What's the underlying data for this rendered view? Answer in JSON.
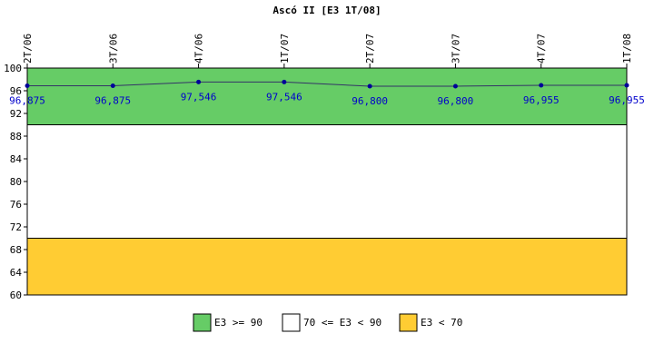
{
  "chart_data": {
    "type": "line",
    "title": "Ascó II [E3 1T/08]",
    "categories": [
      "2T/06",
      "3T/06",
      "4T/06",
      "1T/07",
      "2T/07",
      "3T/07",
      "4T/07",
      "1T/08"
    ],
    "series": [
      {
        "values": [
          96.875,
          96.875,
          97.546,
          97.546,
          96.8,
          96.8,
          96.955,
          96.955
        ],
        "labels": [
          "96,875",
          "96,875",
          "97,546",
          "97,546",
          "96,800",
          "96,800",
          "96,955",
          "96,955"
        ],
        "color": "#333366",
        "marker_color": "#000099",
        "label_color": "#0000cc"
      }
    ],
    "ylim": [
      60,
      100
    ],
    "yticks": [
      60,
      64,
      68,
      72,
      76,
      80,
      84,
      88,
      92,
      96,
      100
    ],
    "bands": [
      {
        "from": 90,
        "to": 100,
        "color": "#66cc66",
        "label": "E3 >= 90"
      },
      {
        "from": 70,
        "to": 90,
        "color": "#ffffff",
        "label": "70 <= E3 < 90"
      },
      {
        "from": 60,
        "to": 70,
        "color": "#ffcc33",
        "label": "E3 < 70"
      }
    ],
    "legend_position": "bottom",
    "grid": false
  }
}
